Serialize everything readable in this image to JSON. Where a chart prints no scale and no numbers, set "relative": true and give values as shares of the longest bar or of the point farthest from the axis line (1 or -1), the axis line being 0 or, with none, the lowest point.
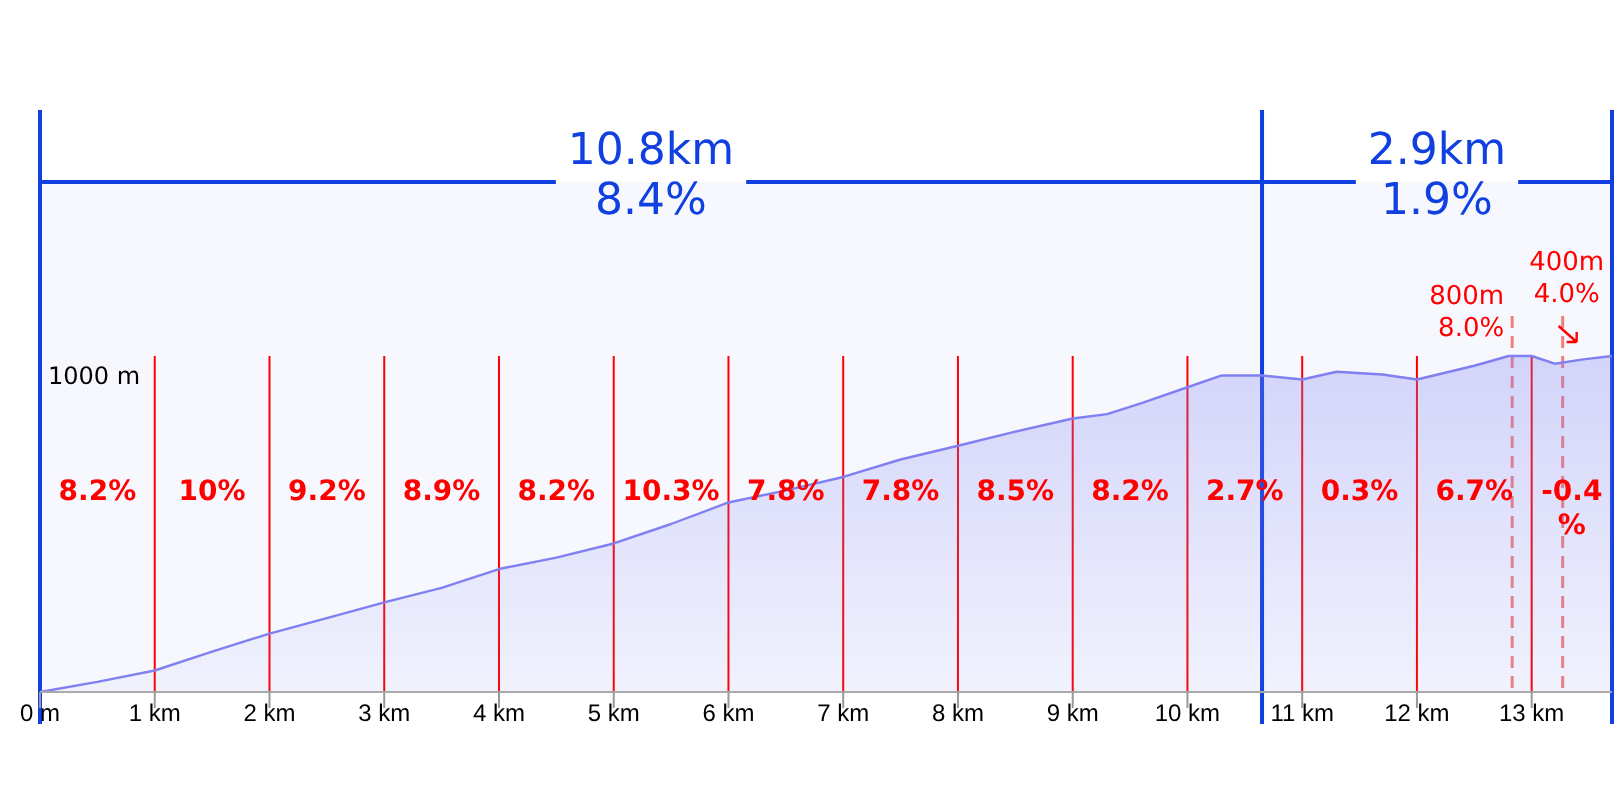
{
  "chart_data": {
    "type": "area",
    "relative": true,
    "color": "#8080f0",
    "x": [
      0,
      0.5,
      1,
      1.5,
      2,
      2.5,
      3,
      3.5,
      4,
      4.5,
      5,
      5.5,
      6,
      6.5,
      7,
      7.5,
      8,
      8.5,
      9,
      9.3,
      9.6,
      10,
      10.3,
      10.65,
      11,
      11.3,
      11.7,
      12,
      12.5,
      12.8,
      13,
      13.2,
      13.45,
      13.7
    ],
    "values": [
      0,
      0.03,
      0.064,
      0.12,
      0.174,
      0.22,
      0.267,
      0.31,
      0.366,
      0.4,
      0.442,
      0.5,
      0.564,
      0.6,
      0.64,
      0.692,
      0.733,
      0.775,
      0.814,
      0.827,
      0.86,
      0.907,
      0.942,
      0.942,
      0.93,
      0.953,
      0.945,
      0.93,
      0.971,
      1.0,
      1.0,
      0.977,
      0.99,
      1.0
    ],
    "xlim": [
      0,
      13.7
    ],
    "xticks": [
      {
        "value": 0,
        "label": "0 m"
      },
      {
        "value": 1,
        "label": "1 km"
      },
      {
        "value": 2,
        "label": "2 km"
      },
      {
        "value": 3,
        "label": "3 km"
      },
      {
        "value": 4,
        "label": "4 km"
      },
      {
        "value": 5,
        "label": "5 km"
      },
      {
        "value": 6,
        "label": "6 km"
      },
      {
        "value": 7,
        "label": "7 km"
      },
      {
        "value": 8,
        "label": "8 km"
      },
      {
        "value": 9,
        "label": "9 km"
      },
      {
        "value": 10,
        "label": "10 km"
      },
      {
        "value": 11,
        "label": "11 km"
      },
      {
        "value": 12,
        "label": "12 km"
      },
      {
        "value": 13,
        "label": "13 km"
      }
    ],
    "ref_lines": [
      {
        "axis": "x",
        "value": 1,
        "color": "#ff0000"
      },
      {
        "axis": "x",
        "value": 2,
        "color": "#ff0000"
      },
      {
        "axis": "x",
        "value": 3,
        "color": "#ff0000"
      },
      {
        "axis": "x",
        "value": 4,
        "color": "#ff0000"
      },
      {
        "axis": "x",
        "value": 5,
        "color": "#ff0000"
      },
      {
        "axis": "x",
        "value": 6,
        "color": "#ff0000"
      },
      {
        "axis": "x",
        "value": 7,
        "color": "#ff0000"
      },
      {
        "axis": "x",
        "value": 8,
        "color": "#ff0000"
      },
      {
        "axis": "x",
        "value": 9,
        "color": "#ff0000"
      },
      {
        "axis": "x",
        "value": 10,
        "color": "#ff0000"
      },
      {
        "axis": "x",
        "value": 11,
        "color": "#ff0000"
      },
      {
        "axis": "x",
        "value": 12,
        "color": "#ff0000"
      },
      {
        "axis": "x",
        "value": 13,
        "color": "#ff0000"
      },
      {
        "axis": "x",
        "value": 0,
        "color": "#1040e0"
      },
      {
        "axis": "x",
        "value": 10.65,
        "color": "#1040e0"
      },
      {
        "axis": "x",
        "value": 13.7,
        "color": "#1040e0"
      },
      {
        "axis": "x",
        "value": 12.83,
        "color": "#f08080",
        "line_style": "dashed",
        "label": "800m\n8.0%"
      },
      {
        "axis": "x",
        "value": 13.27,
        "color": "#f08080",
        "line_style": "dashed",
        "label": "400m\n4.0%"
      }
    ],
    "bands": [
      {
        "axis": "x",
        "from": 0,
        "to": 10.65,
        "color": "#1040e0",
        "label": "10.8km\n8.4%"
      },
      {
        "axis": "x",
        "from": 10.65,
        "to": 13.7,
        "color": "#1040e0",
        "label": "2.9km\n1.9%"
      }
    ],
    "annotations": [
      "1000 m",
      "8.2%",
      "10%",
      "9.2%",
      "8.9%",
      "8.2%",
      "10.3%",
      "7.8%",
      "7.8%",
      "8.5%",
      "8.2%",
      "2.7%",
      "0.3%",
      "6.7%",
      "-0.4%"
    ]
  }
}
